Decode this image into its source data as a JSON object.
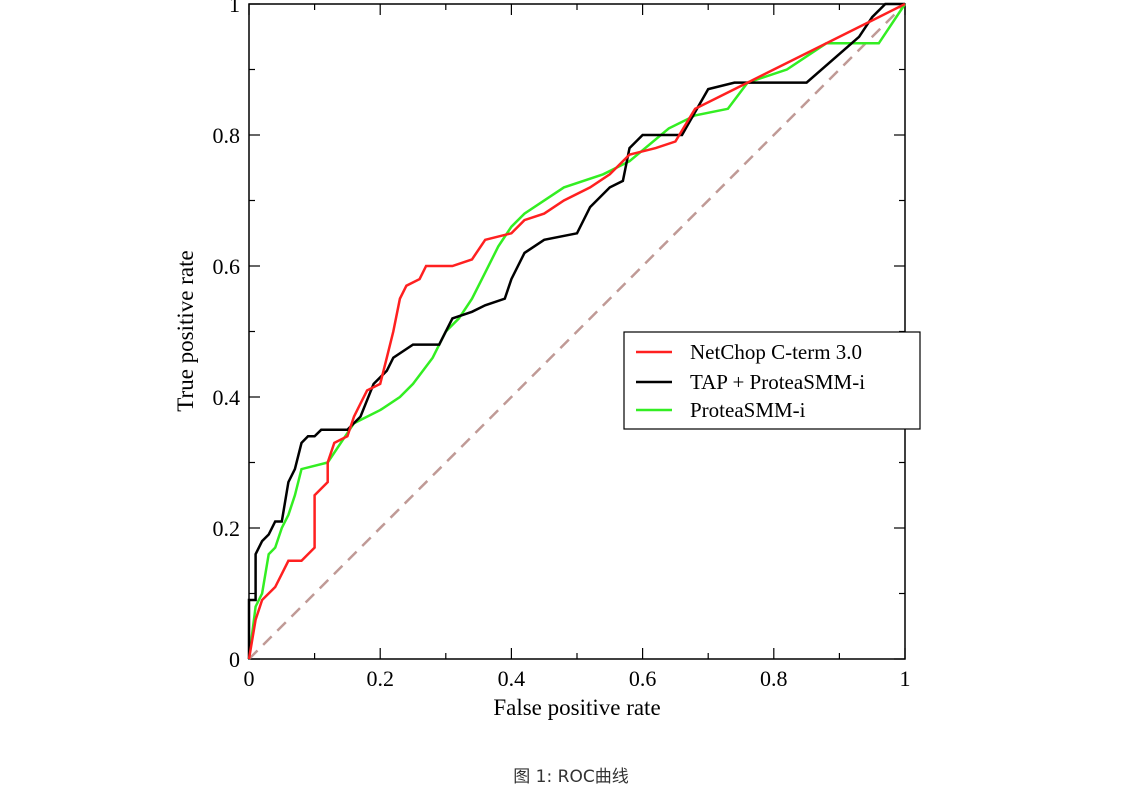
{
  "caption": "图 1:  ROC曲线",
  "chart_data": {
    "type": "line",
    "xlabel": "False positive rate",
    "ylabel": "True positive rate",
    "xlim": [
      0,
      1
    ],
    "ylim": [
      0,
      1
    ],
    "x_ticks": [
      0,
      0.2,
      0.4,
      0.6,
      0.8,
      1
    ],
    "x_tick_labels": [
      "0",
      "0.2",
      "0.4",
      "0.6",
      "0.8",
      "1"
    ],
    "y_ticks": [
      0,
      0.2,
      0.4,
      0.6,
      0.8,
      1
    ],
    "y_tick_labels": [
      "0",
      "0.2",
      "0.4",
      "0.6",
      "0.8",
      "1"
    ],
    "grid": false,
    "legend_position": "center-right",
    "series": [
      {
        "name": "NetChop C-term 3.0",
        "color": "#ff2020",
        "points": [
          [
            0,
            0
          ],
          [
            0.01,
            0.06
          ],
          [
            0.02,
            0.09
          ],
          [
            0.04,
            0.11
          ],
          [
            0.05,
            0.13
          ],
          [
            0.06,
            0.15
          ],
          [
            0.08,
            0.15
          ],
          [
            0.1,
            0.17
          ],
          [
            0.1,
            0.25
          ],
          [
            0.12,
            0.27
          ],
          [
            0.12,
            0.3
          ],
          [
            0.13,
            0.33
          ],
          [
            0.15,
            0.34
          ],
          [
            0.16,
            0.37
          ],
          [
            0.17,
            0.39
          ],
          [
            0.18,
            0.41
          ],
          [
            0.2,
            0.42
          ],
          [
            0.21,
            0.46
          ],
          [
            0.22,
            0.5
          ],
          [
            0.23,
            0.55
          ],
          [
            0.24,
            0.57
          ],
          [
            0.26,
            0.58
          ],
          [
            0.27,
            0.6
          ],
          [
            0.31,
            0.6
          ],
          [
            0.34,
            0.61
          ],
          [
            0.36,
            0.64
          ],
          [
            0.4,
            0.65
          ],
          [
            0.42,
            0.67
          ],
          [
            0.45,
            0.68
          ],
          [
            0.48,
            0.7
          ],
          [
            0.52,
            0.72
          ],
          [
            0.55,
            0.74
          ],
          [
            0.58,
            0.77
          ],
          [
            0.62,
            0.78
          ],
          [
            0.65,
            0.79
          ],
          [
            0.68,
            0.84
          ],
          [
            0.72,
            0.86
          ],
          [
            0.76,
            0.88
          ],
          [
            0.8,
            0.9
          ],
          [
            0.86,
            0.93
          ],
          [
            0.92,
            0.96
          ],
          [
            0.96,
            0.98
          ],
          [
            1,
            1
          ]
        ]
      },
      {
        "name": "TAP + ProteaSMM-i",
        "color": "#000000",
        "points": [
          [
            0,
            0
          ],
          [
            0,
            0.09
          ],
          [
            0.01,
            0.09
          ],
          [
            0.01,
            0.16
          ],
          [
            0.02,
            0.18
          ],
          [
            0.03,
            0.19
          ],
          [
            0.04,
            0.21
          ],
          [
            0.05,
            0.21
          ],
          [
            0.06,
            0.27
          ],
          [
            0.07,
            0.29
          ],
          [
            0.08,
            0.33
          ],
          [
            0.09,
            0.34
          ],
          [
            0.1,
            0.34
          ],
          [
            0.11,
            0.35
          ],
          [
            0.15,
            0.35
          ],
          [
            0.17,
            0.37
          ],
          [
            0.19,
            0.42
          ],
          [
            0.21,
            0.44
          ],
          [
            0.22,
            0.46
          ],
          [
            0.25,
            0.48
          ],
          [
            0.29,
            0.48
          ],
          [
            0.31,
            0.52
          ],
          [
            0.34,
            0.53
          ],
          [
            0.36,
            0.54
          ],
          [
            0.39,
            0.55
          ],
          [
            0.4,
            0.58
          ],
          [
            0.42,
            0.62
          ],
          [
            0.45,
            0.64
          ],
          [
            0.5,
            0.65
          ],
          [
            0.52,
            0.69
          ],
          [
            0.55,
            0.72
          ],
          [
            0.57,
            0.73
          ],
          [
            0.58,
            0.78
          ],
          [
            0.6,
            0.8
          ],
          [
            0.66,
            0.8
          ],
          [
            0.7,
            0.87
          ],
          [
            0.74,
            0.88
          ],
          [
            0.85,
            0.88
          ],
          [
            0.93,
            0.95
          ],
          [
            0.95,
            0.98
          ],
          [
            0.97,
            1
          ],
          [
            1,
            1
          ]
        ]
      },
      {
        "name": "ProteaSMM-i",
        "color": "#33ee22",
        "points": [
          [
            0,
            0
          ],
          [
            0.01,
            0.08
          ],
          [
            0.02,
            0.1
          ],
          [
            0.03,
            0.16
          ],
          [
            0.04,
            0.17
          ],
          [
            0.05,
            0.2
          ],
          [
            0.06,
            0.22
          ],
          [
            0.07,
            0.25
          ],
          [
            0.08,
            0.29
          ],
          [
            0.12,
            0.3
          ],
          [
            0.14,
            0.33
          ],
          [
            0.16,
            0.36
          ],
          [
            0.2,
            0.38
          ],
          [
            0.23,
            0.4
          ],
          [
            0.25,
            0.42
          ],
          [
            0.28,
            0.46
          ],
          [
            0.3,
            0.5
          ],
          [
            0.32,
            0.52
          ],
          [
            0.34,
            0.55
          ],
          [
            0.36,
            0.59
          ],
          [
            0.38,
            0.63
          ],
          [
            0.4,
            0.66
          ],
          [
            0.42,
            0.68
          ],
          [
            0.48,
            0.72
          ],
          [
            0.54,
            0.74
          ],
          [
            0.58,
            0.76
          ],
          [
            0.64,
            0.81
          ],
          [
            0.68,
            0.83
          ],
          [
            0.73,
            0.84
          ],
          [
            0.76,
            0.88
          ],
          [
            0.82,
            0.9
          ],
          [
            0.88,
            0.94
          ],
          [
            0.96,
            0.94
          ],
          [
            1,
            1
          ]
        ]
      },
      {
        "name": "",
        "color": "#c09a96",
        "dashed": true,
        "points": [
          [
            0,
            0
          ],
          [
            1,
            1
          ]
        ]
      }
    ]
  }
}
